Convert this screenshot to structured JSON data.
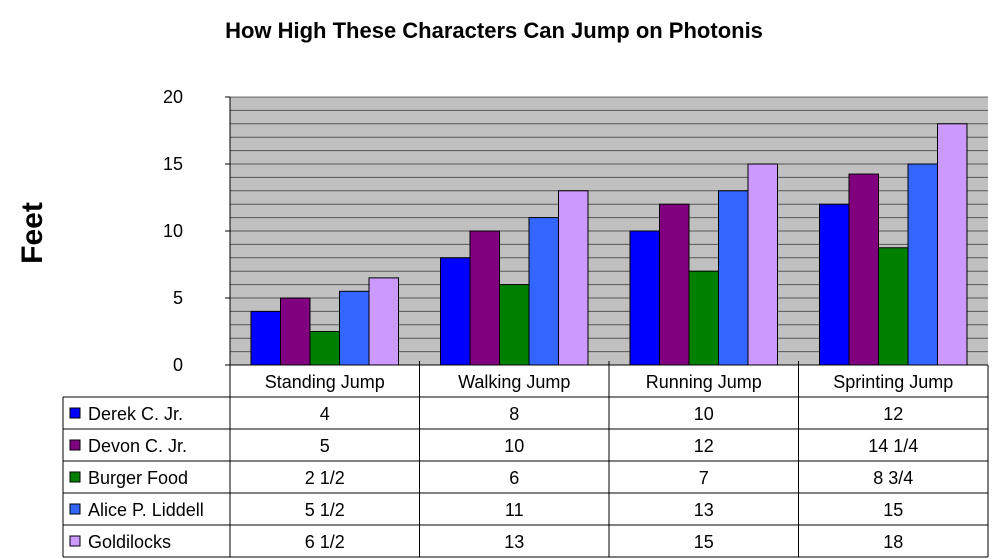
{
  "chart_data": {
    "type": "bar",
    "title": "How High These Characters Can Jump on Photonis",
    "ylabel": "Feet",
    "xlabel": "",
    "categories": [
      "Standing Jump",
      "Walking Jump",
      "Running Jump",
      "Sprinting Jump"
    ],
    "ylim": [
      0,
      20
    ],
    "yticks": [
      "0",
      "5",
      "10",
      "15",
      "20"
    ],
    "grid": true,
    "legend": "data-table",
    "series": [
      {
        "name": "Derek C. Jr.",
        "color": "#0000ff",
        "values": [
          4,
          8,
          10,
          12
        ],
        "labels": [
          "4",
          "8",
          "10",
          "12"
        ]
      },
      {
        "name": "Devon C. Jr.",
        "color": "#800080",
        "values": [
          5,
          10,
          12,
          14.25
        ],
        "labels": [
          "5",
          "10",
          "12",
          "14 1/4"
        ]
      },
      {
        "name": "Burger Food",
        "color": "#008000",
        "values": [
          2.5,
          6,
          7,
          8.75
        ],
        "labels": [
          "2 1/2",
          "6",
          "7",
          "8 3/4"
        ]
      },
      {
        "name": "Alice P. Liddell",
        "color": "#3366ff",
        "values": [
          5.5,
          11,
          13,
          15
        ],
        "labels": [
          "5 1/2",
          "11",
          "13",
          "15"
        ]
      },
      {
        "name": "Goldilocks",
        "color": "#cc99ff",
        "values": [
          6.5,
          13,
          15,
          18
        ],
        "labels": [
          "6 1/2",
          "13",
          "15",
          "18"
        ]
      }
    ]
  }
}
